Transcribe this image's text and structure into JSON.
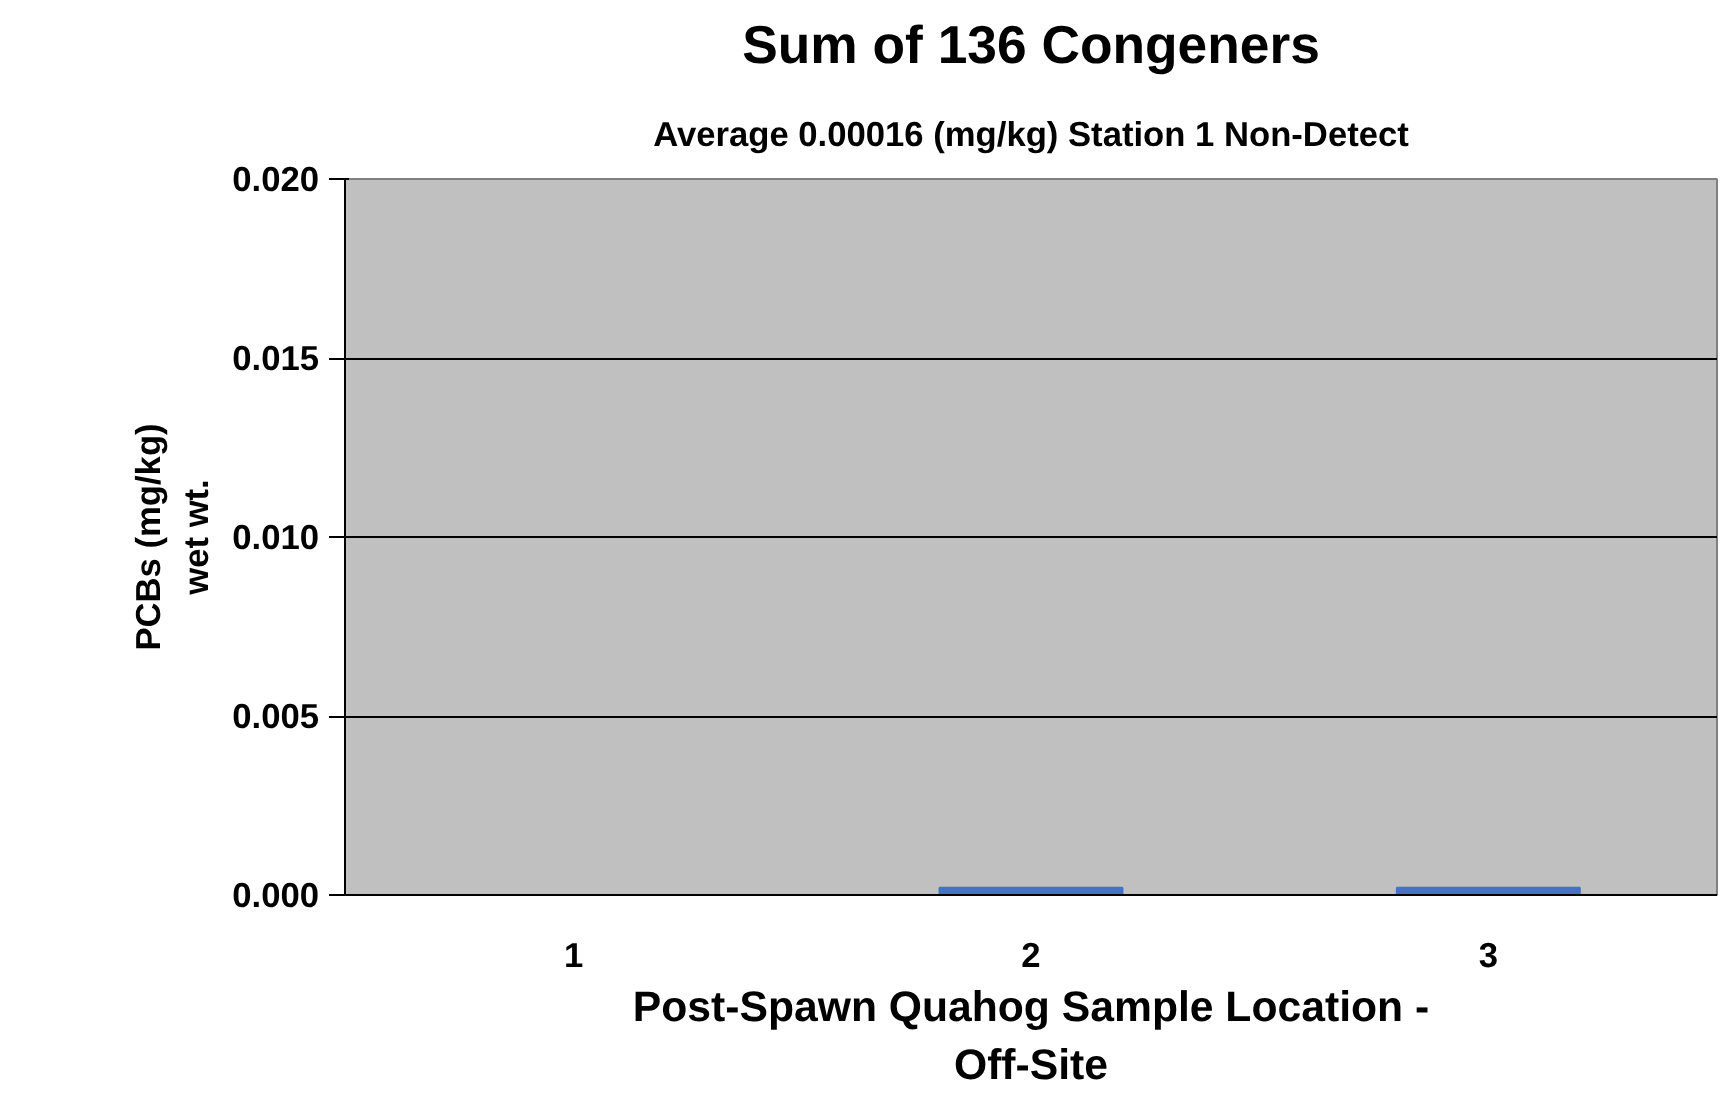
{
  "chart_data": {
    "type": "bar",
    "title": "Sum of 136 Congeners",
    "subtitle": "Average 0.00016 (mg/kg) Station 1 Non-Detect",
    "xlabel": "Post-Spawn Quahog Sample Location -\nOff-Site",
    "ylabel": "PCBs (mg/kg)\nwet wt.",
    "categories": [
      "1",
      "2",
      "3"
    ],
    "values": [
      0,
      0.0002,
      0.0002
    ],
    "color": "#4472c4",
    "ylim": [
      0,
      0.02
    ],
    "yticks": [
      {
        "value": 0,
        "label": "0.000"
      },
      {
        "value": 0.005,
        "label": "0.005"
      },
      {
        "value": 0.01,
        "label": "0.010"
      },
      {
        "value": 0.015,
        "label": "0.015"
      },
      {
        "value": 0.02,
        "label": "0.020"
      }
    ],
    "grid": "y"
  }
}
